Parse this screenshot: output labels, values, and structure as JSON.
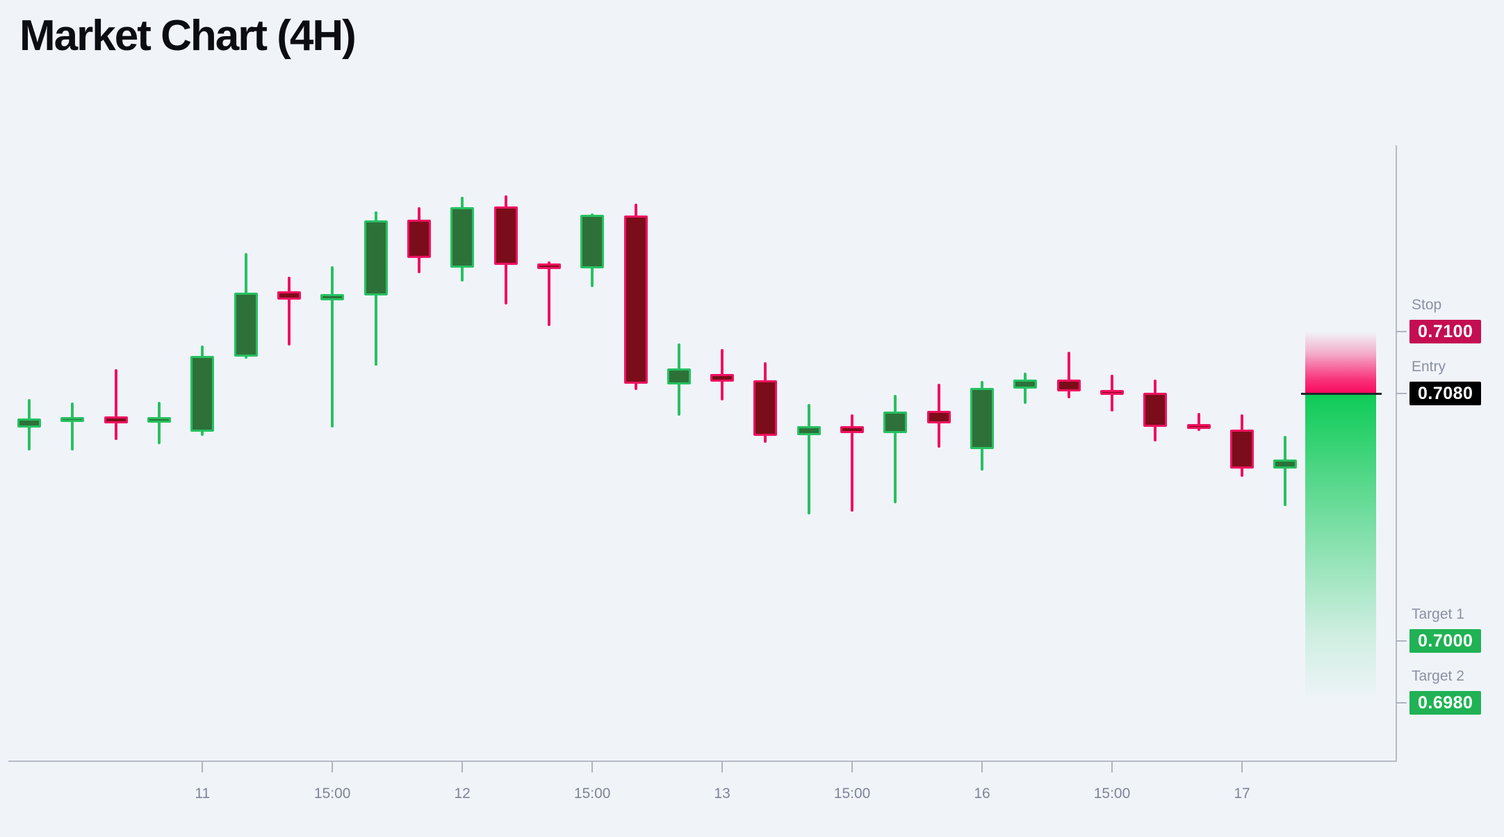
{
  "title": "Market Chart (4H)",
  "colors": {
    "background": "#f0f4f9",
    "title_text": "#0b0d12",
    "bull_fill": "#2d7139",
    "bull_border": "#27c162",
    "bear_fill": "#7a0d19",
    "bear_border": "#f01160",
    "axis_line": "#b5bac4",
    "tick": "#aeb3bd",
    "x_label_text": "#7d8496",
    "level_label_text": "#8a90a4",
    "entry_line": "#23262d",
    "zone_pink": "#fa095e",
    "zone_green": "#0ecb57"
  },
  "chart_data": {
    "type": "candlestick",
    "title": "Market Chart (4H)",
    "timeframe": "4H",
    "legend": "none",
    "x_axis": {
      "labels": [
        {
          "index": 4,
          "label": "11"
        },
        {
          "index": 7,
          "label": "15:00"
        },
        {
          "index": 10,
          "label": "12"
        },
        {
          "index": 13,
          "label": "15:00"
        },
        {
          "index": 16,
          "label": "13"
        },
        {
          "index": 19,
          "label": "15:00"
        },
        {
          "index": 22,
          "label": "16"
        },
        {
          "index": 25,
          "label": "15:00"
        },
        {
          "index": 28,
          "label": "17"
        }
      ]
    },
    "y_axis": {
      "visible_price_range": [
        0.6965,
        0.7165
      ],
      "gridlines": false,
      "tick_labels_visible": false
    },
    "candles": [
      {
        "o": 0.7069,
        "h": 0.70782,
        "l": 0.70616,
        "c": 0.70719
      },
      {
        "o": 0.70708,
        "h": 0.70771,
        "l": 0.70616,
        "c": 0.70724
      },
      {
        "o": 0.70726,
        "h": 0.70879,
        "l": 0.7065,
        "c": 0.70703
      },
      {
        "o": 0.70706,
        "h": 0.70773,
        "l": 0.70636,
        "c": 0.70724
      },
      {
        "o": 0.70676,
        "h": 0.70955,
        "l": 0.70663,
        "c": 0.70921
      },
      {
        "o": 0.70919,
        "h": 0.71254,
        "l": 0.70912,
        "c": 0.71126
      },
      {
        "o": 0.7113,
        "h": 0.71178,
        "l": 0.70955,
        "c": 0.71103
      },
      {
        "o": 0.71101,
        "h": 0.71211,
        "l": 0.7069,
        "c": 0.71121
      },
      {
        "o": 0.71117,
        "h": 0.71389,
        "l": 0.7089,
        "c": 0.7136
      },
      {
        "o": 0.71362,
        "h": 0.71402,
        "l": 0.71189,
        "c": 0.71238
      },
      {
        "o": 0.71207,
        "h": 0.71436,
        "l": 0.71162,
        "c": 0.71402
      },
      {
        "o": 0.71404,
        "h": 0.7144,
        "l": 0.71088,
        "c": 0.71216
      },
      {
        "o": 0.7122,
        "h": 0.71227,
        "l": 0.71018,
        "c": 0.71202
      },
      {
        "o": 0.71204,
        "h": 0.71382,
        "l": 0.71144,
        "c": 0.71377
      },
      {
        "o": 0.71375,
        "h": 0.71413,
        "l": 0.70811,
        "c": 0.70831
      },
      {
        "o": 0.70829,
        "h": 0.70962,
        "l": 0.70728,
        "c": 0.70881
      },
      {
        "o": 0.70863,
        "h": 0.70944,
        "l": 0.70778,
        "c": 0.70838
      },
      {
        "o": 0.70843,
        "h": 0.70901,
        "l": 0.7064,
        "c": 0.70663
      },
      {
        "o": 0.70665,
        "h": 0.70766,
        "l": 0.70409,
        "c": 0.70694
      },
      {
        "o": 0.70694,
        "h": 0.70733,
        "l": 0.70418,
        "c": 0.70672
      },
      {
        "o": 0.70672,
        "h": 0.70796,
        "l": 0.70445,
        "c": 0.70742
      },
      {
        "o": 0.70744,
        "h": 0.70831,
        "l": 0.70625,
        "c": 0.70703
      },
      {
        "o": 0.7062,
        "h": 0.7084,
        "l": 0.70551,
        "c": 0.70818
      },
      {
        "o": 0.70816,
        "h": 0.70867,
        "l": 0.70766,
        "c": 0.70845
      },
      {
        "o": 0.70845,
        "h": 0.70935,
        "l": 0.70784,
        "c": 0.70807
      },
      {
        "o": 0.70811,
        "h": 0.70861,
        "l": 0.70742,
        "c": 0.70798
      },
      {
        "o": 0.70802,
        "h": 0.70845,
        "l": 0.70645,
        "c": 0.70692
      },
      {
        "o": 0.70701,
        "h": 0.70737,
        "l": 0.70679,
        "c": 0.70688
      },
      {
        "o": 0.70683,
        "h": 0.70733,
        "l": 0.7053,
        "c": 0.70557
      },
      {
        "o": 0.70557,
        "h": 0.70663,
        "l": 0.70436,
        "c": 0.70587
      }
    ],
    "levels": {
      "stop": {
        "label": "Stop",
        "display": "0.7100",
        "price": 0.71,
        "badge_color": "#c40e52"
      },
      "entry": {
        "label": "Entry",
        "display": "0.7080",
        "price": 0.708,
        "badge_color": "#000000"
      },
      "target1": {
        "label": "Target 1",
        "display": "0.7000",
        "price": 0.7,
        "badge_color": "#20b254"
      },
      "target2": {
        "label": "Target 2",
        "display": "0.6980",
        "price": 0.698,
        "badge_color": "#20b254"
      }
    },
    "risk_zone": {
      "from_level": "stop",
      "to_level": "entry",
      "color": "#fa095e"
    },
    "profit_zone": {
      "from_level": "entry",
      "to_level": "target2",
      "color": "#0ecb57"
    }
  }
}
